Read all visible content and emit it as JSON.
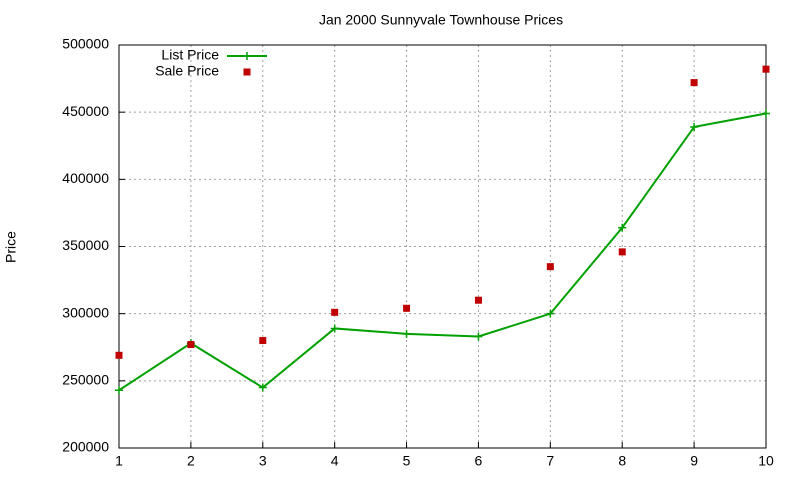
{
  "chart_data": {
    "type": "line",
    "title": "Jan 2000 Sunnyvale Townhouse Prices",
    "y_label": "Price",
    "x": [
      1,
      2,
      3,
      4,
      5,
      6,
      7,
      8,
      9,
      10
    ],
    "series": [
      {
        "name": "List Price",
        "color": "#00a000",
        "mode": "linespoints",
        "values": [
          243000,
          278000,
          245000,
          289000,
          285000,
          283000,
          300000,
          364000,
          439000,
          449000
        ]
      },
      {
        "name": "Sale Price",
        "color": "#c00000",
        "mode": "points",
        "values": [
          269000,
          277000,
          280000,
          301000,
          304000,
          310000,
          335000,
          346000,
          472000,
          482000
        ]
      }
    ],
    "xlim": [
      1,
      10
    ],
    "xticks": [
      1,
      2,
      3,
      4,
      5,
      6,
      7,
      8,
      9,
      10
    ],
    "ylim": [
      200000,
      500000
    ],
    "yticks": [
      200000,
      250000,
      300000,
      350000,
      400000,
      450000,
      500000
    ],
    "grid": true,
    "legend": "top-left"
  }
}
